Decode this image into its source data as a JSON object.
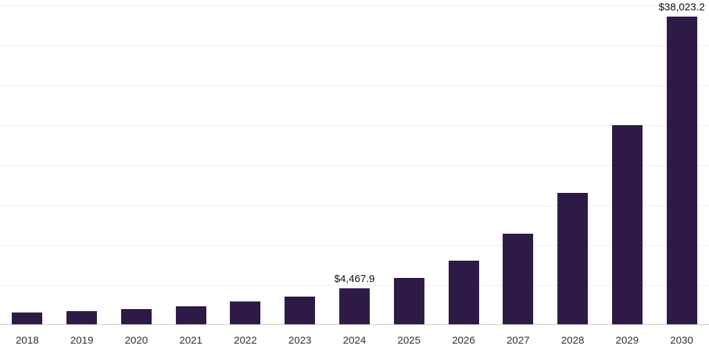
{
  "chart_data": {
    "type": "bar",
    "title": "",
    "xlabel": "",
    "ylabel": "",
    "categories": [
      "2018",
      "2019",
      "2020",
      "2021",
      "2022",
      "2023",
      "2024",
      "2025",
      "2026",
      "2027",
      "2028",
      "2029",
      "2030"
    ],
    "values": [
      1450,
      1630,
      1890,
      2230,
      2830,
      3430,
      4467.9,
      5750,
      7900,
      11170,
      16240,
      24570,
      38023.2
    ],
    "data_labels": {
      "2024": "$4,467.9",
      "2030": "$38,023.2"
    },
    "ylim": [
      0,
      38023.2
    ],
    "grid": true,
    "legend": "none",
    "bar_color": "#2e1a47",
    "gridline_color": "#ededed",
    "axis_line_color": "#cccccc",
    "label_color": "#111111",
    "tick_color": "#333333"
  }
}
